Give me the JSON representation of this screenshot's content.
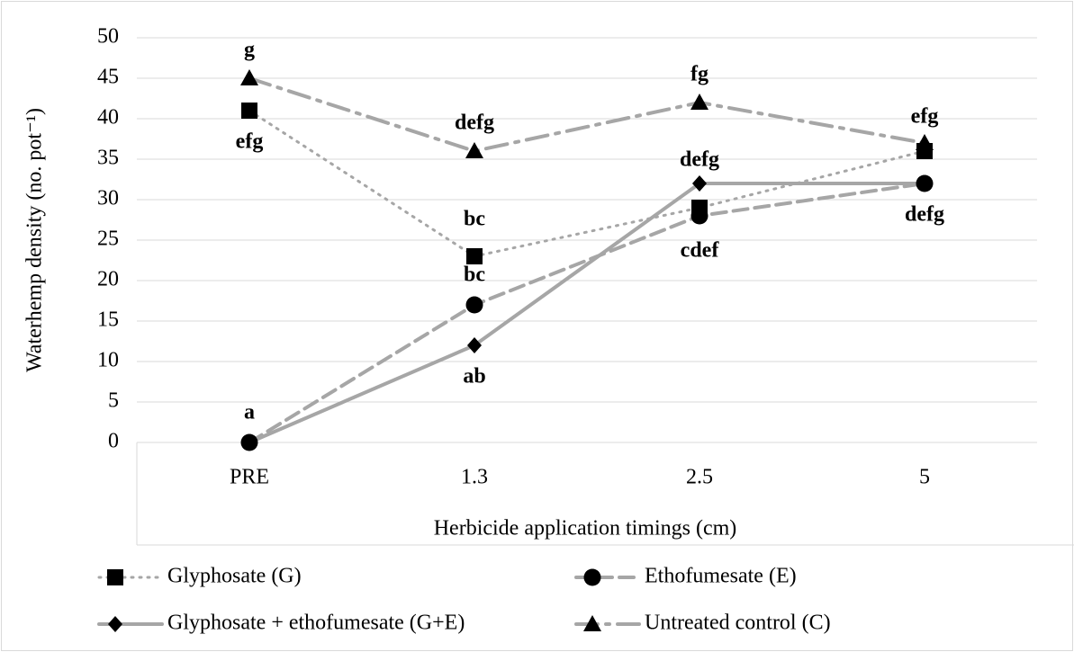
{
  "chart_data": {
    "type": "line",
    "y_label": "Waterhemp density (no. pot⁻¹)",
    "x_label": "Herbicide application timings (cm)",
    "categories": [
      "PRE",
      "1.3",
      "2.5",
      "5"
    ],
    "ylim": [
      0,
      50
    ],
    "yticks": [
      0,
      5,
      10,
      15,
      20,
      25,
      30,
      35,
      40,
      45,
      50
    ],
    "grid": true,
    "legend": "bottom",
    "series": [
      {
        "name": "Glyphosate (G)",
        "color": "#a6a6a6",
        "marker": "square",
        "line_style": "dotted",
        "values": [
          41,
          23,
          29,
          36
        ],
        "point_labels": [
          "efg",
          "bc",
          null,
          null
        ]
      },
      {
        "name": "Ethofumesate (E)",
        "color": "#a6a6a6",
        "marker": "circle",
        "line_style": "dashed",
        "values": [
          0,
          17,
          28,
          32
        ],
        "point_labels": [
          "a",
          "bc",
          "cdef",
          "defg"
        ]
      },
      {
        "name": "Glyphosate + ethofumesate (G+E)",
        "color": "#a6a6a6",
        "marker": "diamond",
        "line_style": "solid",
        "values": [
          0,
          12,
          32,
          32
        ],
        "point_labels": [
          null,
          "ab",
          "defg",
          null
        ]
      },
      {
        "name": "Untreated control (C)",
        "color": "#a6a6a6",
        "marker": "triangle",
        "line_style": "dash-dot",
        "values": [
          45,
          36,
          42,
          37
        ],
        "point_labels": [
          "g",
          "defg",
          "fg",
          "efg"
        ]
      }
    ]
  }
}
